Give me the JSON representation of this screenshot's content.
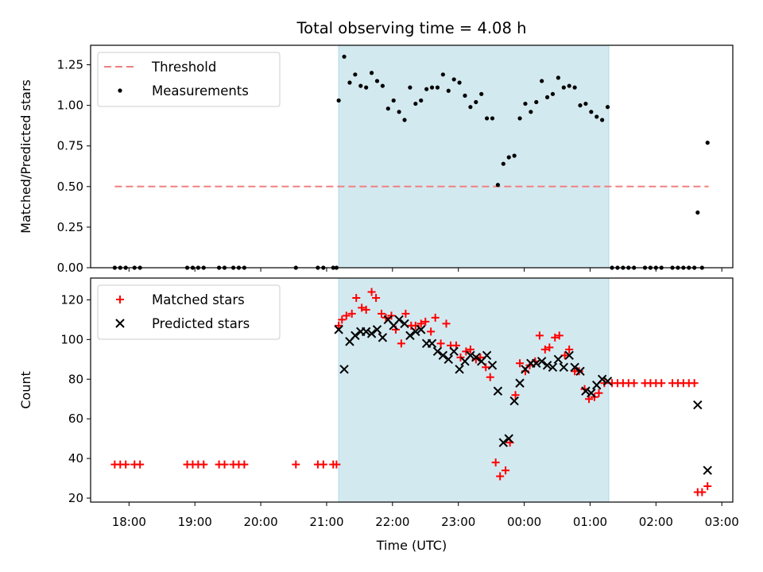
{
  "title": "Total observing time = 4.08 h",
  "chart_data": [
    {
      "type": "scatter",
      "ylabel": "Matched/Predicted stars",
      "xlabel": "",
      "xlim": [
        "17:25",
        "03:10"
      ],
      "ylim": [
        0,
        1.37
      ],
      "yticks": [
        "0.00",
        "0.25",
        "0.50",
        "0.75",
        "1.00",
        "1.25"
      ],
      "grid": false,
      "legend_position": "top-left",
      "highlight_span": {
        "from": "21:11",
        "to": "01:17",
        "color": "#d3e9f0"
      },
      "series": [
        {
          "name": "Threshold",
          "style": "dashed-line",
          "color": "#f08080",
          "points": [
            [
              "17:47",
              0.5
            ],
            [
              "02:48",
              0.5
            ]
          ]
        },
        {
          "name": "Measurements",
          "style": "dot",
          "color": "#000000",
          "points": [
            [
              "17:47",
              0
            ],
            [
              "17:52",
              0
            ],
            [
              "17:57",
              0
            ],
            [
              "18:05",
              0
            ],
            [
              "18:10",
              0
            ],
            [
              "18:53",
              0
            ],
            [
              "18:58",
              0
            ],
            [
              "19:03",
              0
            ],
            [
              "19:08",
              0
            ],
            [
              "19:22",
              0
            ],
            [
              "19:27",
              0
            ],
            [
              "19:35",
              0
            ],
            [
              "19:40",
              0
            ],
            [
              "19:45",
              0
            ],
            [
              "20:32",
              0
            ],
            [
              "20:52",
              0
            ],
            [
              "20:57",
              0
            ],
            [
              "21:06",
              0
            ],
            [
              "21:09",
              0
            ],
            [
              "21:11",
              1.03
            ],
            [
              "21:16",
              1.3
            ],
            [
              "21:21",
              1.14
            ],
            [
              "21:26",
              1.19
            ],
            [
              "21:31",
              1.12
            ],
            [
              "21:36",
              1.11
            ],
            [
              "21:41",
              1.2
            ],
            [
              "21:46",
              1.15
            ],
            [
              "21:51",
              1.12
            ],
            [
              "21:56",
              0.98
            ],
            [
              "22:01",
              1.03
            ],
            [
              "22:06",
              0.96
            ],
            [
              "22:11",
              0.91
            ],
            [
              "22:16",
              1.11
            ],
            [
              "22:21",
              1.01
            ],
            [
              "22:26",
              1.03
            ],
            [
              "22:31",
              1.1
            ],
            [
              "22:36",
              1.11
            ],
            [
              "22:41",
              1.11
            ],
            [
              "22:46",
              1.19
            ],
            [
              "22:51",
              1.09
            ],
            [
              "22:56",
              1.16
            ],
            [
              "23:01",
              1.14
            ],
            [
              "23:06",
              1.06
            ],
            [
              "23:11",
              0.99
            ],
            [
              "23:16",
              1.02
            ],
            [
              "23:21",
              1.07
            ],
            [
              "23:26",
              0.92
            ],
            [
              "23:31",
              0.92
            ],
            [
              "23:36",
              0.51
            ],
            [
              "23:41",
              0.64
            ],
            [
              "23:46",
              0.68
            ],
            [
              "23:51",
              0.69
            ],
            [
              "23:56",
              0.92
            ],
            [
              "00:01",
              1.01
            ],
            [
              "00:06",
              0.96
            ],
            [
              "00:11",
              1.02
            ],
            [
              "00:16",
              1.15
            ],
            [
              "00:21",
              1.05
            ],
            [
              "00:26",
              1.07
            ],
            [
              "00:31",
              1.17
            ],
            [
              "00:36",
              1.11
            ],
            [
              "00:41",
              1.12
            ],
            [
              "00:46",
              1.11
            ],
            [
              "00:51",
              1.0
            ],
            [
              "00:56",
              1.01
            ],
            [
              "01:01",
              0.96
            ],
            [
              "01:06",
              0.93
            ],
            [
              "01:11",
              0.91
            ],
            [
              "01:16",
              0.99
            ],
            [
              "01:20",
              0
            ],
            [
              "01:25",
              0
            ],
            [
              "01:30",
              0
            ],
            [
              "01:35",
              0
            ],
            [
              "01:40",
              0
            ],
            [
              "01:50",
              0
            ],
            [
              "01:55",
              0
            ],
            [
              "02:00",
              0
            ],
            [
              "02:05",
              0
            ],
            [
              "02:15",
              0
            ],
            [
              "02:20",
              0
            ],
            [
              "02:25",
              0
            ],
            [
              "02:30",
              0
            ],
            [
              "02:35",
              0
            ],
            [
              "02:38",
              0.34
            ],
            [
              "02:42",
              0
            ],
            [
              "02:47",
              0.77
            ]
          ]
        }
      ]
    },
    {
      "type": "scatter",
      "ylabel": "Count",
      "xlabel": "Time (UTC)",
      "xlim": [
        "17:25",
        "03:10"
      ],
      "ylim": [
        18,
        131
      ],
      "yticks": [
        "20",
        "40",
        "60",
        "80",
        "100",
        "120"
      ],
      "xticks": [
        "18:00",
        "19:00",
        "20:00",
        "21:00",
        "22:00",
        "23:00",
        "00:00",
        "01:00",
        "02:00",
        "03:00"
      ],
      "grid": false,
      "legend_position": "top-left",
      "highlight_span": {
        "from": "21:11",
        "to": "01:17",
        "color": "#d3e9f0"
      },
      "series": [
        {
          "name": "Matched stars",
          "style": "plus",
          "color": "#ff0000",
          "points": [
            [
              "17:47",
              37
            ],
            [
              "17:52",
              37
            ],
            [
              "17:57",
              37
            ],
            [
              "18:05",
              37
            ],
            [
              "18:10",
              37
            ],
            [
              "18:53",
              37
            ],
            [
              "18:58",
              37
            ],
            [
              "19:03",
              37
            ],
            [
              "19:08",
              37
            ],
            [
              "19:22",
              37
            ],
            [
              "19:27",
              37
            ],
            [
              "19:35",
              37
            ],
            [
              "19:40",
              37
            ],
            [
              "19:45",
              37
            ],
            [
              "20:32",
              37
            ],
            [
              "20:52",
              37
            ],
            [
              "20:57",
              37
            ],
            [
              "21:06",
              37
            ],
            [
              "21:09",
              37
            ],
            [
              "21:11",
              107
            ],
            [
              "21:14",
              110
            ],
            [
              "21:18",
              112
            ],
            [
              "21:23",
              113
            ],
            [
              "21:27",
              121
            ],
            [
              "21:32",
              116
            ],
            [
              "21:36",
              115
            ],
            [
              "21:41",
              124
            ],
            [
              "21:45",
              121
            ],
            [
              "21:50",
              113
            ],
            [
              "21:54",
              111
            ],
            [
              "21:59",
              112
            ],
            [
              "22:03",
              105
            ],
            [
              "22:08",
              98
            ],
            [
              "22:12",
              113
            ],
            [
              "22:17",
              107
            ],
            [
              "22:21",
              107
            ],
            [
              "22:26",
              108
            ],
            [
              "22:30",
              109
            ],
            [
              "22:35",
              104
            ],
            [
              "22:39",
              111
            ],
            [
              "22:44",
              98
            ],
            [
              "22:49",
              108
            ],
            [
              "22:53",
              97
            ],
            [
              "22:58",
              97
            ],
            [
              "23:02",
              91
            ],
            [
              "23:07",
              94
            ],
            [
              "23:11",
              95
            ],
            [
              "23:16",
              90
            ],
            [
              "23:20",
              91
            ],
            [
              "23:25",
              86
            ],
            [
              "23:29",
              81
            ],
            [
              "23:34",
              38
            ],
            [
              "23:38",
              31
            ],
            [
              "23:43",
              34
            ],
            [
              "23:47",
              48
            ],
            [
              "23:52",
              72
            ],
            [
              "23:56",
              88
            ],
            [
              "00:01",
              84
            ],
            [
              "00:05",
              87
            ],
            [
              "00:10",
              89
            ],
            [
              "00:14",
              102
            ],
            [
              "00:19",
              95
            ],
            [
              "00:23",
              96
            ],
            [
              "00:28",
              101
            ],
            [
              "00:32",
              102
            ],
            [
              "00:37",
              92
            ],
            [
              "00:41",
              95
            ],
            [
              "00:46",
              84
            ],
            [
              "00:50",
              84
            ],
            [
              "00:55",
              75
            ],
            [
              "00:59",
              70
            ],
            [
              "01:04",
              71
            ],
            [
              "01:08",
              73
            ],
            [
              "01:13",
              78
            ],
            [
              "01:20",
              78
            ],
            [
              "01:25",
              78
            ],
            [
              "01:30",
              78
            ],
            [
              "01:35",
              78
            ],
            [
              "01:40",
              78
            ],
            [
              "01:50",
              78
            ],
            [
              "01:55",
              78
            ],
            [
              "02:00",
              78
            ],
            [
              "02:05",
              78
            ],
            [
              "02:15",
              78
            ],
            [
              "02:20",
              78
            ],
            [
              "02:25",
              78
            ],
            [
              "02:30",
              78
            ],
            [
              "02:35",
              78
            ],
            [
              "02:38",
              23
            ],
            [
              "02:42",
              23
            ],
            [
              "02:47",
              26
            ]
          ]
        },
        {
          "name": "Predicted stars",
          "style": "x",
          "color": "#000000",
          "points": [
            [
              "21:11",
              105
            ],
            [
              "21:16",
              85
            ],
            [
              "21:21",
              99
            ],
            [
              "21:26",
              102
            ],
            [
              "21:31",
              104
            ],
            [
              "21:36",
              104
            ],
            [
              "21:41",
              103
            ],
            [
              "21:46",
              105
            ],
            [
              "21:51",
              101
            ],
            [
              "21:56",
              110
            ],
            [
              "22:01",
              107
            ],
            [
              "22:06",
              110
            ],
            [
              "22:11",
              108
            ],
            [
              "22:16",
              102
            ],
            [
              "22:21",
              104
            ],
            [
              "22:26",
              105
            ],
            [
              "22:31",
              98
            ],
            [
              "22:36",
              98
            ],
            [
              "22:41",
              94
            ],
            [
              "22:46",
              92
            ],
            [
              "22:51",
              90
            ],
            [
              "22:56",
              94
            ],
            [
              "23:01",
              85
            ],
            [
              "23:06",
              89
            ],
            [
              "23:11",
              92
            ],
            [
              "23:16",
              91
            ],
            [
              "23:21",
              89
            ],
            [
              "23:26",
              92
            ],
            [
              "23:31",
              87
            ],
            [
              "23:36",
              74
            ],
            [
              "23:41",
              48
            ],
            [
              "23:46",
              50
            ],
            [
              "23:51",
              69
            ],
            [
              "23:56",
              78
            ],
            [
              "00:01",
              85
            ],
            [
              "00:06",
              88
            ],
            [
              "00:11",
              88
            ],
            [
              "00:16",
              89
            ],
            [
              "00:21",
              87
            ],
            [
              "00:26",
              86
            ],
            [
              "00:31",
              90
            ],
            [
              "00:36",
              86
            ],
            [
              "00:41",
              92
            ],
            [
              "00:46",
              86
            ],
            [
              "00:51",
              84
            ],
            [
              "00:56",
              74
            ],
            [
              "01:01",
              73
            ],
            [
              "01:06",
              77
            ],
            [
              "01:11",
              80
            ],
            [
              "01:16",
              79
            ],
            [
              "02:38",
              67
            ],
            [
              "02:47",
              34
            ]
          ]
        }
      ]
    }
  ]
}
